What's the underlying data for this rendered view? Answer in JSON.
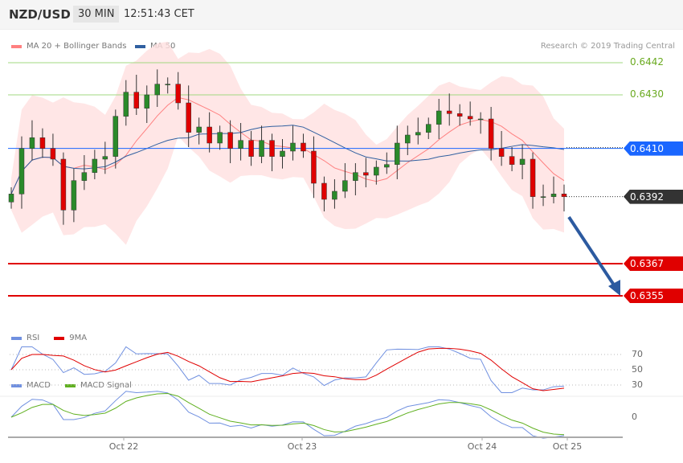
{
  "header": {
    "symbol": "NZD/USD",
    "timeframe": "30 MIN",
    "time": "12:51:43 CET"
  },
  "legend": {
    "bb": "MA 20 + Bollinger Bands",
    "ma50": "MA 50",
    "rsi": "RSI",
    "rsi_ma": "9MA",
    "macd": "MACD",
    "macd_signal": "MACD Signal"
  },
  "copyright": "Research © 2019 Trading Central",
  "colors": {
    "up": "#2a8a2a",
    "down": "#e00000",
    "band": "#ffe0e0",
    "ma20": "#ff8080",
    "ma50": "#3060a0",
    "resistance": "#a0d880",
    "pivot": "#1a66ff",
    "support": "#e00000",
    "arrow": "#2c5aa0",
    "rsi": "#7090e0",
    "macd_signal": "#60b020"
  },
  "levels": [
    {
      "value": "0.6442",
      "type": "resistance"
    },
    {
      "value": "0.6430",
      "type": "resistance"
    },
    {
      "value": "0.6410",
      "type": "pivot"
    },
    {
      "value": "0.6392",
      "type": "last"
    },
    {
      "value": "0.6367",
      "type": "support"
    },
    {
      "value": "0.6355",
      "type": "support"
    }
  ],
  "rsi_ticks": [
    "70",
    "50",
    "30"
  ],
  "macd_ticks": [
    "0"
  ],
  "x_labels": [
    "Oct 22",
    "Oct 23",
    "Oct 24",
    "Oct 25"
  ],
  "chart_data": {
    "type": "candlestick",
    "closes": [
      0.6393,
      0.641,
      0.6414,
      0.641,
      0.6406,
      0.6387,
      0.6398,
      0.6401,
      0.6406,
      0.6407,
      0.6422,
      0.6431,
      0.6425,
      0.643,
      0.6434,
      0.6434,
      0.6427,
      0.6416,
      0.6418,
      0.6412,
      0.6416,
      0.641,
      0.6413,
      0.6407,
      0.6413,
      0.6407,
      0.6409,
      0.6412,
      0.6409,
      0.6397,
      0.6391,
      0.6394,
      0.6398,
      0.6401,
      0.64,
      0.6403,
      0.6404,
      0.6412,
      0.6415,
      0.6416,
      0.6419,
      0.6424,
      0.6423,
      0.6422,
      0.6421,
      0.6421,
      0.641,
      0.6407,
      0.6404,
      0.6406,
      0.6392,
      0.6392,
      0.6393,
      0.6392
    ]
  }
}
